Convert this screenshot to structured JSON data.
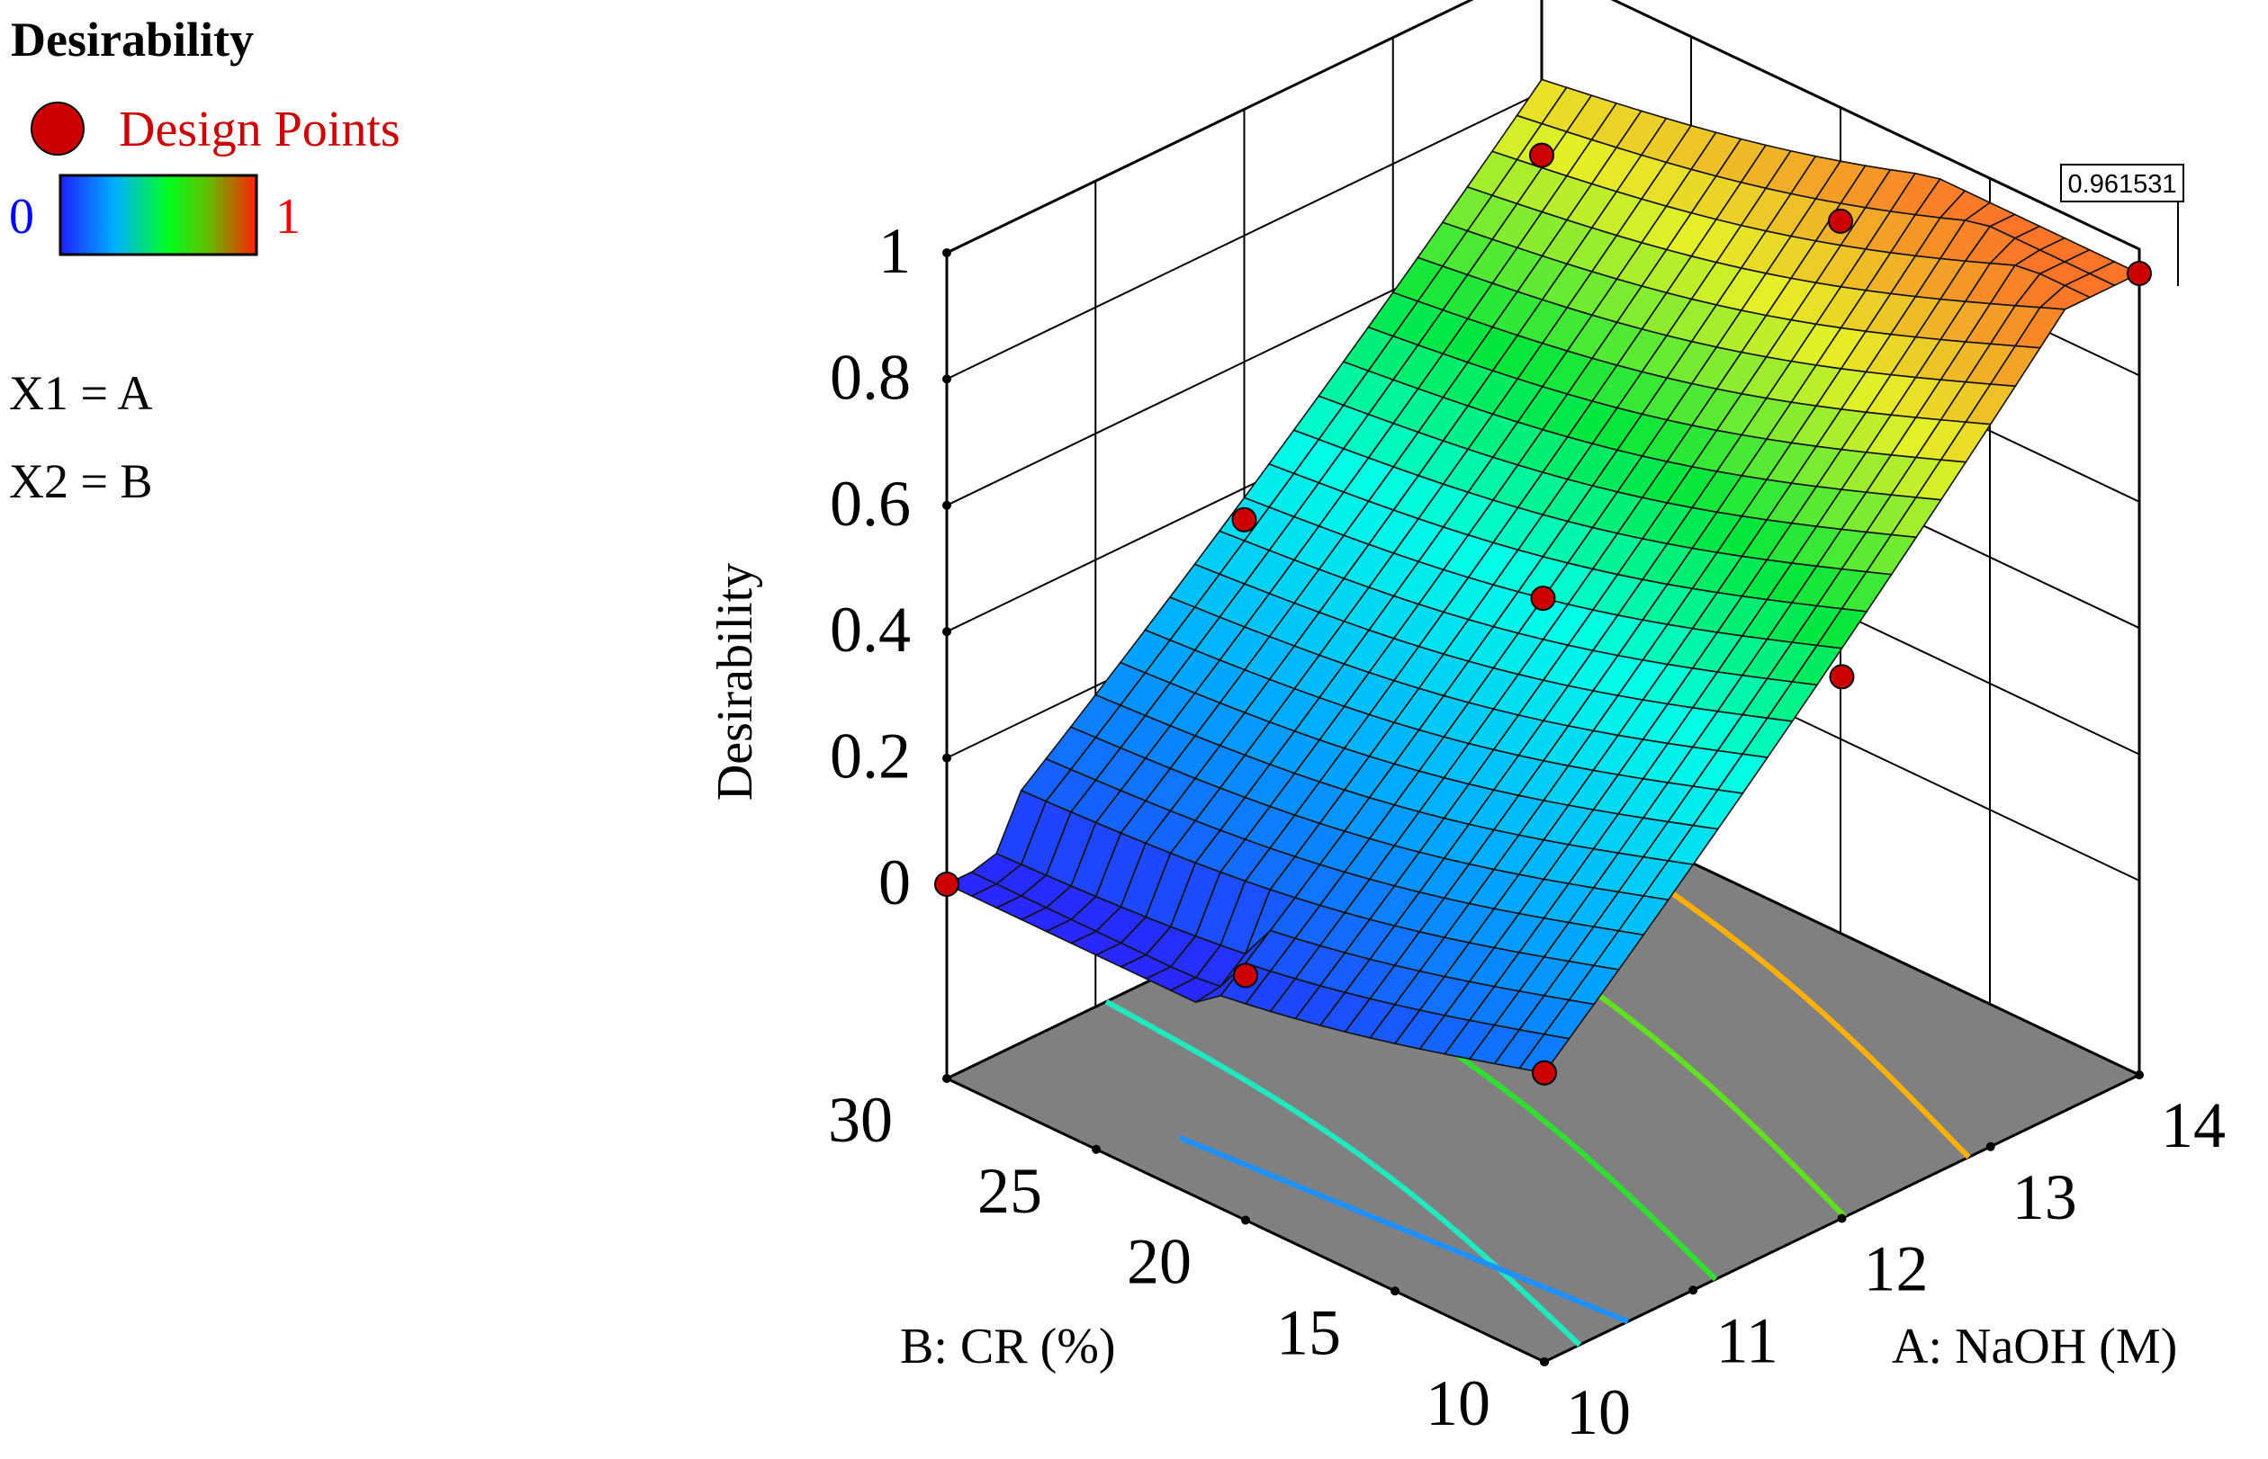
{
  "chart_data": {
    "type": "surface",
    "title": "Desirability",
    "legend": {
      "design_points_label": "Design Points",
      "colorbar_min": "0",
      "colorbar_max": "1",
      "colors": [
        "#2020ff",
        "#00ffff",
        "#00ff00",
        "#ffff00",
        "#ff6000"
      ],
      "factor_1": "X1 = A",
      "factor_2": "X2 = B"
    },
    "axes": {
      "z": {
        "label": "Desirability",
        "ticks": [
          "0",
          "0.2",
          "0.4",
          "0.6",
          "0.8",
          "1"
        ],
        "range": [
          0,
          1
        ]
      },
      "x": {
        "label": "A: NaOH (M)",
        "ticks": [
          "10",
          "11",
          "12",
          "13",
          "14"
        ],
        "range": [
          10,
          14
        ]
      },
      "y": {
        "label": "B: CR (%)",
        "ticks": [
          "10",
          "15",
          "20",
          "25",
          "30"
        ],
        "range": [
          10,
          30
        ]
      }
    },
    "flag_label": "0.961531",
    "max_value": 0.961531,
    "design_points": [
      {
        "A": 10,
        "B": 30,
        "value": 0.0
      },
      {
        "A": 10,
        "B": 20,
        "value": 0.08
      },
      {
        "A": 10,
        "B": 10,
        "value": 0.15
      },
      {
        "A": 12,
        "B": 30,
        "value": 0.35
      },
      {
        "A": 12,
        "B": 20,
        "value": 0.45
      },
      {
        "A": 12,
        "B": 10,
        "value": 0.55
      },
      {
        "A": 14,
        "B": 30,
        "value": 0.7
      },
      {
        "A": 14,
        "B": 20,
        "value": 0.82
      },
      {
        "A": 14,
        "B": 10,
        "value": 0.961531
      }
    ],
    "contour_levels": [
      0.2,
      0.4,
      0.6,
      0.8
    ],
    "contour_colors": [
      "#1e90ff",
      "#20e8c0",
      "#30e030",
      "#60e020",
      "#ffb000"
    ],
    "background": "#ffffff",
    "floor_color": "#808080",
    "point_color": "#cc0000",
    "grid": true
  }
}
